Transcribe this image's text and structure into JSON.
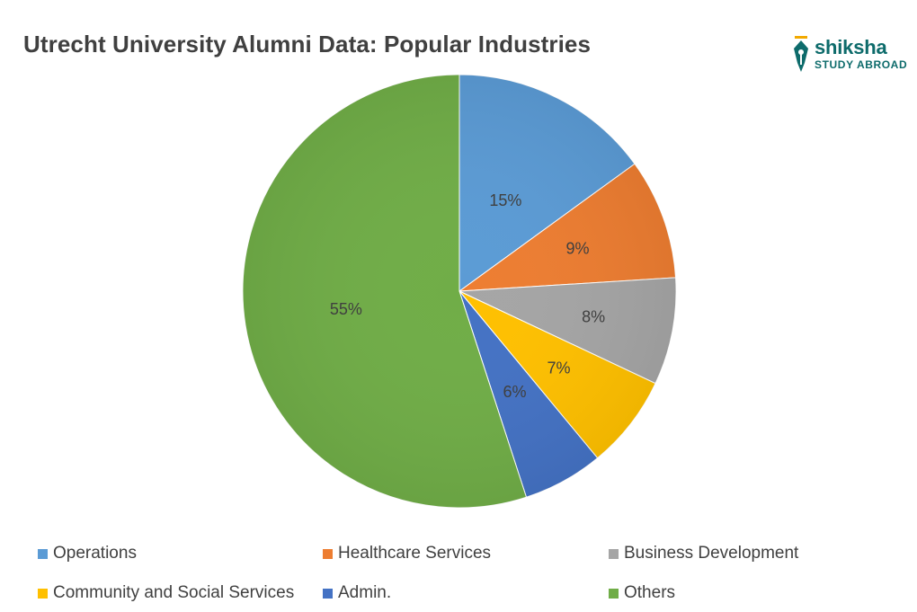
{
  "title": "Utrecht University Alumni Data: Popular Industries",
  "logo": {
    "name": "shiksha",
    "subtitle": "STUDY ABROAD",
    "color": "#0d6b6b",
    "icon": "pen-nib-icon"
  },
  "chart_data": {
    "type": "pie",
    "title": "Utrecht University Alumni Data: Popular Industries",
    "legend_position": "bottom",
    "slices": [
      {
        "name": "Operations",
        "value": 15,
        "label": "15%",
        "color": "#5b9bd5"
      },
      {
        "name": "Healthcare Services",
        "value": 9,
        "label": "9%",
        "color": "#ed7d31"
      },
      {
        "name": "Business Development",
        "value": 8,
        "label": "8%",
        "color": "#a5a5a5"
      },
      {
        "name": "Community and Social Services",
        "value": 7,
        "label": "7%",
        "color": "#ffc000"
      },
      {
        "name": "Admin.",
        "value": 6,
        "label": "6%",
        "color": "#4472c4"
      },
      {
        "name": "Others",
        "value": 55,
        "label": "55%",
        "color": "#70ad47"
      }
    ]
  }
}
